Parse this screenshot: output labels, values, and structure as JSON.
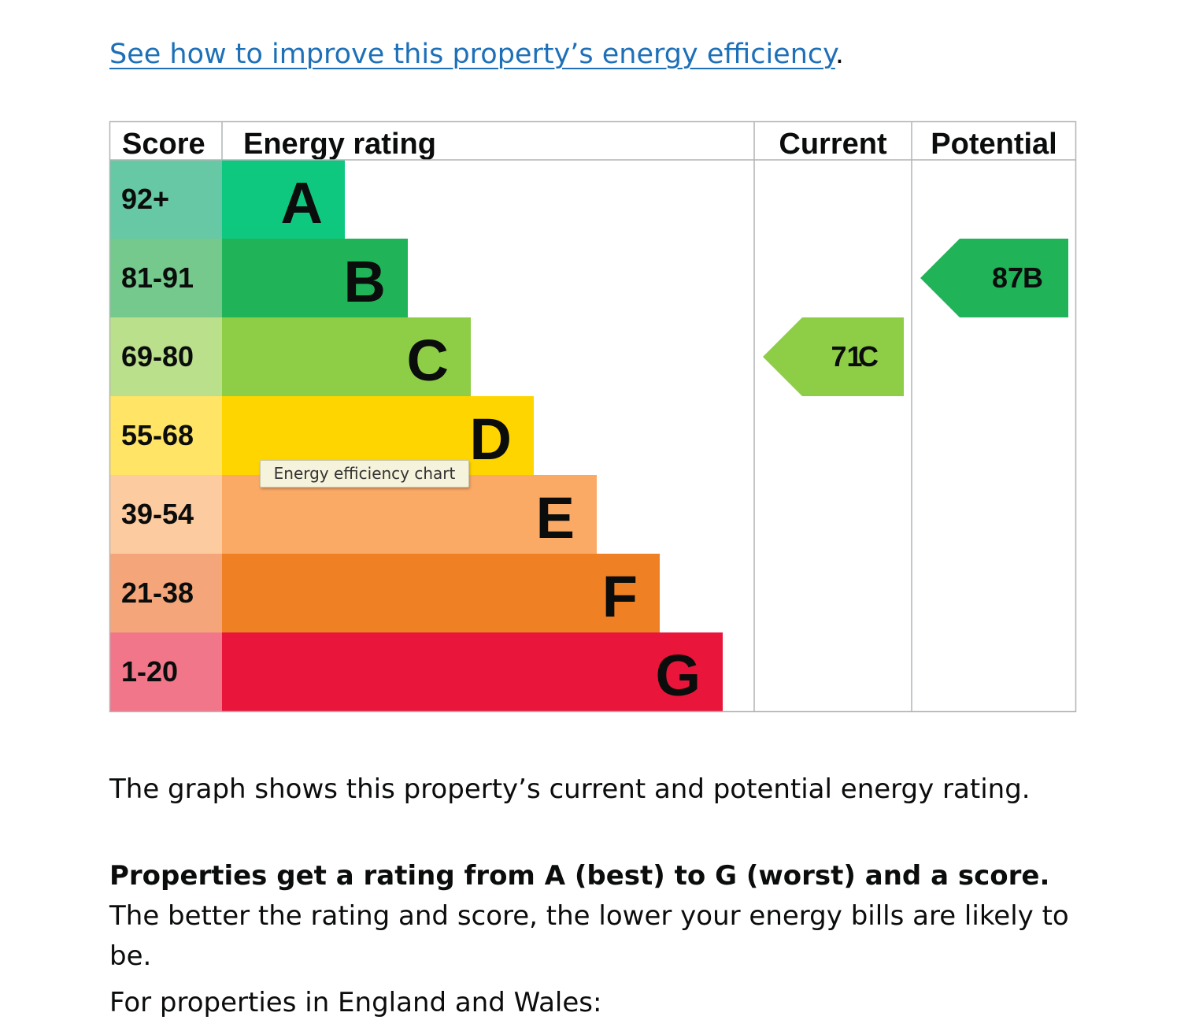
{
  "improve": {
    "link_text": "See how to improve this property’s energy efficiency",
    "trailing": "."
  },
  "chart_data": {
    "type": "table",
    "headers": {
      "score": "Score",
      "rating": "Energy rating",
      "current": "Current",
      "potential": "Potential"
    },
    "bands": [
      {
        "letter": "A",
        "range": "92+",
        "color": "#0fc880",
        "score_color": "#66c8a4"
      },
      {
        "letter": "B",
        "range": "81-91",
        "color": "#21b358",
        "score_color": "#75c98d"
      },
      {
        "letter": "C",
        "range": "69-80",
        "color": "#8dce46",
        "score_color": "#bbe08c"
      },
      {
        "letter": "D",
        "range": "55-68",
        "color": "#ffd500",
        "score_color": "#ffe466"
      },
      {
        "letter": "E",
        "range": "39-54",
        "color": "#fbaa66",
        "score_color": "#fdcba0"
      },
      {
        "letter": "F",
        "range": "21-38",
        "color": "#ef8023",
        "score_color": "#f4a67a"
      },
      {
        "letter": "G",
        "range": "1-20",
        "color": "#e9153b",
        "score_color": "#f2768a"
      }
    ],
    "current": {
      "score": 71,
      "band": "C"
    },
    "potential": {
      "score": 87,
      "band": "B"
    }
  },
  "tooltip": "Energy efficiency chart",
  "text": {
    "p1": "The graph shows this property’s current and potential energy rating.",
    "p2_bold": "Properties get a rating from A (best) to G (worst) and a score.",
    "p2_rest": " The better the rating and score, the lower your energy bills are likely to be.",
    "p3": "For properties in England and Wales:"
  }
}
